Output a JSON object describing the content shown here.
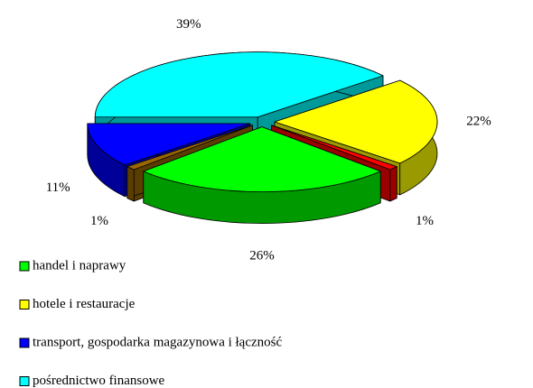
{
  "chart_data": {
    "type": "pie",
    "values": [
      26,
      1,
      11,
      39,
      22,
      1
    ],
    "value_labels": [
      "26%",
      "1%",
      "11%",
      "39%",
      "22%",
      "1%"
    ],
    "colors": [
      "#00ff00",
      "#996600",
      "#0000ff",
      "#00ffff",
      "#ffff00",
      "#ff0000"
    ],
    "legend": [
      {
        "name": "handel i naprawy",
        "color": "#00ff00"
      },
      {
        "name": "hotele i restauracje",
        "color": "#ffff00"
      },
      {
        "name": "transport, gospodarka magazynowa i łączność",
        "color": "#0000ff"
      },
      {
        "name": "pośrednictwo finansowe",
        "color": "#00ffff"
      }
    ]
  }
}
